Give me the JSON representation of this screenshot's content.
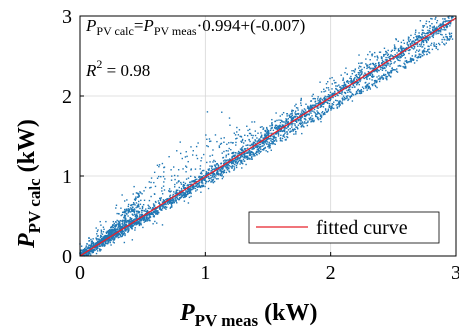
{
  "chart_data": {
    "type": "scatter",
    "xlabel": {
      "main": "P",
      "sub": "PV meas",
      "unit": " (kW)"
    },
    "ylabel": {
      "main": "P",
      "sub": "PV calc",
      "unit": " (kW)"
    },
    "xlim": [
      0,
      3
    ],
    "ylim": [
      0,
      3
    ],
    "xticks": [
      {
        "value": 0,
        "label": "0"
      },
      {
        "value": 1,
        "label": "1"
      },
      {
        "value": 2,
        "label": "2"
      },
      {
        "value": 3,
        "label": "3"
      }
    ],
    "yticks": [
      {
        "value": 0,
        "label": "0"
      },
      {
        "value": 1,
        "label": "1"
      },
      {
        "value": 2,
        "label": "2"
      },
      {
        "value": 3,
        "label": "3"
      }
    ],
    "grid": true,
    "legend": {
      "placement": "bottom-right",
      "entries": [
        "fitted curve"
      ]
    },
    "annotation": {
      "line1": {
        "lhs_main": "P",
        "lhs_sub": "PV calc",
        "eq": "=",
        "rhs_main": "P",
        "rhs_sub": "PV meas",
        "tail": "·0.994+(-0.007)"
      },
      "line2": {
        "lhs": "R",
        "sup": "2",
        "tail": " = 0.98"
      }
    },
    "fit": {
      "slope": 0.994,
      "intercept": -0.007,
      "r2": 0.98
    },
    "series": [
      {
        "kind": "scatter",
        "color": "#1f77b4"
      },
      {
        "kind": "line",
        "name": "fitted curve",
        "color": "#e8202a"
      }
    ]
  }
}
